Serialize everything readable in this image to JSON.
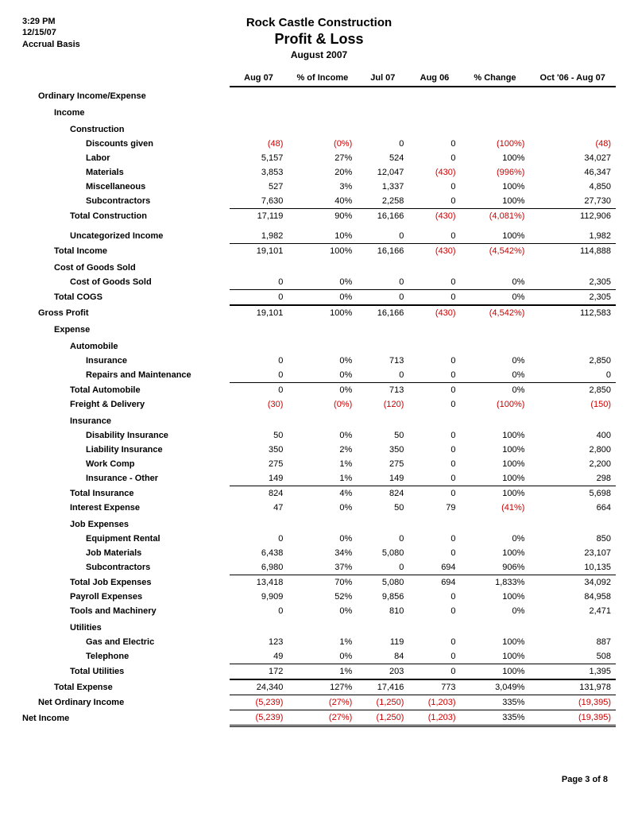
{
  "header": {
    "time": "3:29 PM",
    "date": "12/15/07",
    "basis": "Accrual Basis",
    "company": "Rock Castle Construction",
    "report": "Profit & Loss",
    "period": "August 2007"
  },
  "columns": [
    "Aug 07",
    "% of Income",
    "Jul 07",
    "Aug 06",
    "% Change",
    "Oct '06 - Aug 07"
  ],
  "rows": [
    {
      "label": "Ordinary Income/Expense",
      "indent": 1,
      "section": true
    },
    {
      "label": "Income",
      "indent": 2,
      "section": true
    },
    {
      "label": "Construction",
      "indent": 3,
      "section": true
    },
    {
      "label": "Discounts given",
      "indent": 4,
      "v": [
        "(48)",
        "(0%)",
        "0",
        "0",
        "(100%)",
        "(48)"
      ],
      "neg": [
        1,
        1,
        0,
        0,
        1,
        1
      ]
    },
    {
      "label": "Labor",
      "indent": 4,
      "v": [
        "5,157",
        "27%",
        "524",
        "0",
        "100%",
        "34,027"
      ]
    },
    {
      "label": "Materials",
      "indent": 4,
      "v": [
        "3,853",
        "20%",
        "12,047",
        "(430)",
        "(996%)",
        "46,347"
      ],
      "neg": [
        0,
        0,
        0,
        1,
        1,
        0
      ]
    },
    {
      "label": "Miscellaneous",
      "indent": 4,
      "v": [
        "527",
        "3%",
        "1,337",
        "0",
        "100%",
        "4,850"
      ]
    },
    {
      "label": "Subcontractors",
      "indent": 4,
      "v": [
        "7,630",
        "40%",
        "2,258",
        "0",
        "100%",
        "27,730"
      ]
    },
    {
      "label": "Total Construction",
      "indent": 3,
      "v": [
        "17,119",
        "90%",
        "16,166",
        "(430)",
        "(4,081%)",
        "112,906"
      ],
      "neg": [
        0,
        0,
        0,
        1,
        1,
        0
      ],
      "bt": true
    },
    {
      "label": "Uncategorized Income",
      "indent": 3,
      "v": [
        "1,982",
        "10%",
        "0",
        "0",
        "100%",
        "1,982"
      ],
      "spacer": true
    },
    {
      "label": "Total Income",
      "indent": 2,
      "v": [
        "19,101",
        "100%",
        "16,166",
        "(430)",
        "(4,542%)",
        "114,888"
      ],
      "neg": [
        0,
        0,
        0,
        1,
        1,
        0
      ],
      "bt": true
    },
    {
      "label": "Cost of Goods Sold",
      "indent": 2,
      "section": true
    },
    {
      "label": "Cost of Goods Sold",
      "indent": 3,
      "v": [
        "0",
        "0%",
        "0",
        "0",
        "0%",
        "2,305"
      ]
    },
    {
      "label": "Total COGS",
      "indent": 2,
      "v": [
        "0",
        "0%",
        "0",
        "0",
        "0%",
        "2,305"
      ],
      "bt": true
    },
    {
      "label": "Gross Profit",
      "indent": 1,
      "v": [
        "19,101",
        "100%",
        "16,166",
        "(430)",
        "(4,542%)",
        "112,583"
      ],
      "neg": [
        0,
        0,
        0,
        1,
        1,
        0
      ],
      "bt2": true
    },
    {
      "label": "Expense",
      "indent": 2,
      "section": true
    },
    {
      "label": "Automobile",
      "indent": 3,
      "section": true
    },
    {
      "label": "Insurance",
      "indent": 4,
      "v": [
        "0",
        "0%",
        "713",
        "0",
        "0%",
        "2,850"
      ]
    },
    {
      "label": "Repairs and Maintenance",
      "indent": 4,
      "v": [
        "0",
        "0%",
        "0",
        "0",
        "0%",
        "0"
      ]
    },
    {
      "label": "Total Automobile",
      "indent": 3,
      "v": [
        "0",
        "0%",
        "713",
        "0",
        "0%",
        "2,850"
      ],
      "bt": true
    },
    {
      "label": "Freight & Delivery",
      "indent": 3,
      "v": [
        "(30)",
        "(0%)",
        "(120)",
        "0",
        "(100%)",
        "(150)"
      ],
      "neg": [
        1,
        1,
        1,
        0,
        1,
        1
      ]
    },
    {
      "label": "Insurance",
      "indent": 3,
      "section": true
    },
    {
      "label": "Disability Insurance",
      "indent": 4,
      "v": [
        "50",
        "0%",
        "50",
        "0",
        "100%",
        "400"
      ]
    },
    {
      "label": "Liability Insurance",
      "indent": 4,
      "v": [
        "350",
        "2%",
        "350",
        "0",
        "100%",
        "2,800"
      ]
    },
    {
      "label": "Work Comp",
      "indent": 4,
      "v": [
        "275",
        "1%",
        "275",
        "0",
        "100%",
        "2,200"
      ]
    },
    {
      "label": "Insurance - Other",
      "indent": 4,
      "v": [
        "149",
        "1%",
        "149",
        "0",
        "100%",
        "298"
      ]
    },
    {
      "label": "Total Insurance",
      "indent": 3,
      "v": [
        "824",
        "4%",
        "824",
        "0",
        "100%",
        "5,698"
      ],
      "bt": true
    },
    {
      "label": "Interest Expense",
      "indent": 3,
      "v": [
        "47",
        "0%",
        "50",
        "79",
        "(41%)",
        "664"
      ],
      "neg": [
        0,
        0,
        0,
        0,
        1,
        0
      ]
    },
    {
      "label": "Job Expenses",
      "indent": 3,
      "section": true
    },
    {
      "label": "Equipment Rental",
      "indent": 4,
      "v": [
        "0",
        "0%",
        "0",
        "0",
        "0%",
        "850"
      ]
    },
    {
      "label": "Job Materials",
      "indent": 4,
      "v": [
        "6,438",
        "34%",
        "5,080",
        "0",
        "100%",
        "23,107"
      ]
    },
    {
      "label": "Subcontractors",
      "indent": 4,
      "v": [
        "6,980",
        "37%",
        "0",
        "694",
        "906%",
        "10,135"
      ]
    },
    {
      "label": "Total Job Expenses",
      "indent": 3,
      "v": [
        "13,418",
        "70%",
        "5,080",
        "694",
        "1,833%",
        "34,092"
      ],
      "bt": true
    },
    {
      "label": "Payroll Expenses",
      "indent": 3,
      "v": [
        "9,909",
        "52%",
        "9,856",
        "0",
        "100%",
        "84,958"
      ]
    },
    {
      "label": "Tools and Machinery",
      "indent": 3,
      "v": [
        "0",
        "0%",
        "810",
        "0",
        "0%",
        "2,471"
      ]
    },
    {
      "label": "Utilities",
      "indent": 3,
      "section": true
    },
    {
      "label": "Gas and Electric",
      "indent": 4,
      "v": [
        "123",
        "1%",
        "119",
        "0",
        "100%",
        "887"
      ]
    },
    {
      "label": "Telephone",
      "indent": 4,
      "v": [
        "49",
        "0%",
        "84",
        "0",
        "100%",
        "508"
      ]
    },
    {
      "label": "Total Utilities",
      "indent": 3,
      "v": [
        "172",
        "1%",
        "203",
        "0",
        "100%",
        "1,395"
      ],
      "bt": true
    },
    {
      "label": "Total Expense",
      "indent": 2,
      "v": [
        "24,340",
        "127%",
        "17,416",
        "773",
        "3,049%",
        "131,978"
      ],
      "bt2": true
    },
    {
      "label": "Net Ordinary Income",
      "indent": 1,
      "v": [
        "(5,239)",
        "(27%)",
        "(1,250)",
        "(1,203)",
        "335%",
        "(19,395)"
      ],
      "neg": [
        1,
        1,
        1,
        1,
        0,
        1
      ],
      "bt": true
    },
    {
      "label": "Net Income",
      "indent": 0,
      "v": [
        "(5,239)",
        "(27%)",
        "(1,250)",
        "(1,203)",
        "335%",
        "(19,395)"
      ],
      "neg": [
        1,
        1,
        1,
        1,
        0,
        1
      ],
      "db": true
    }
  ],
  "footer": "Page 3 of 8"
}
